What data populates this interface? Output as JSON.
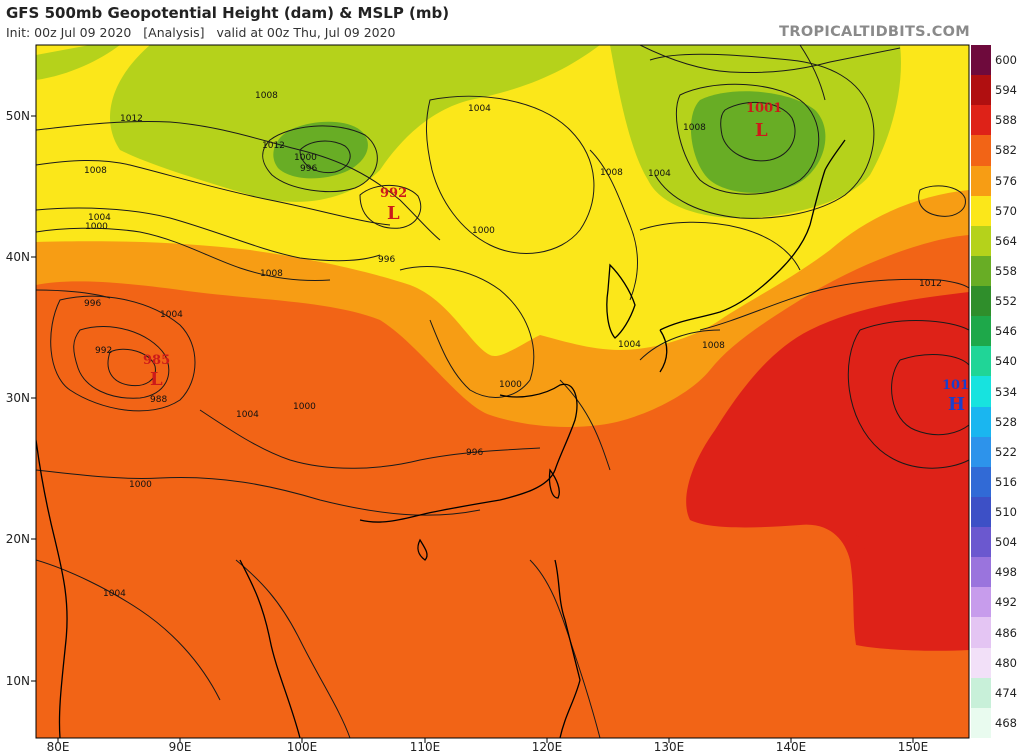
{
  "header": {
    "title": "GFS 500mb Geopotential Height (dam) & MSLP (mb)",
    "subtitle": "Init: 00z Jul 09 2020   [Analysis]   valid at 00z Thu, Jul 09 2020",
    "brand": "TROPICALTIDBITS.COM"
  },
  "axes": {
    "lat_labels": [
      "50N",
      "40N",
      "30N",
      "20N",
      "10N"
    ],
    "lon_labels": [
      "80E",
      "90E",
      "100E",
      "110E",
      "120E",
      "130E",
      "140E",
      "150E"
    ]
  },
  "colorbar": {
    "labels": [
      "600",
      "594",
      "588",
      "582",
      "576",
      "570",
      "564",
      "558",
      "552",
      "546",
      "540",
      "534",
      "528",
      "522",
      "516",
      "510",
      "504",
      "498",
      "492",
      "486",
      "480",
      "474",
      "468"
    ],
    "colors": [
      "#6e0a3c",
      "#b00f10",
      "#de2218",
      "#f26416",
      "#f79d14",
      "#fbe71a",
      "#b5d21b",
      "#68ad25",
      "#2f8e2b",
      "#1ea84a",
      "#20d597",
      "#17e3df",
      "#1ab6f0",
      "#2d93eb",
      "#316ad6",
      "#3d50c6",
      "#6b58cf",
      "#9a74dd",
      "#c79cec",
      "#e4c5f3",
      "#f2e0f8",
      "#c8f0d9",
      "#e9fbef"
    ]
  },
  "map": {
    "pressure_labels": [
      "1012",
      "1008",
      "1004",
      "1000",
      "996",
      "992",
      "988",
      "1000",
      "1004",
      "1008",
      "1012",
      "996",
      "1000",
      "1004",
      "1008",
      "1004",
      "1000",
      "996",
      "1004",
      "1008",
      "1008",
      "1004",
      "1000",
      "1004",
      "1000",
      "996",
      "1008",
      "1012"
    ],
    "systems": [
      {
        "type": "L",
        "value": "992"
      },
      {
        "type": "L",
        "value": "1001"
      },
      {
        "type": "L",
        "value": "985"
      },
      {
        "type": "H",
        "value": "101"
      }
    ]
  }
}
